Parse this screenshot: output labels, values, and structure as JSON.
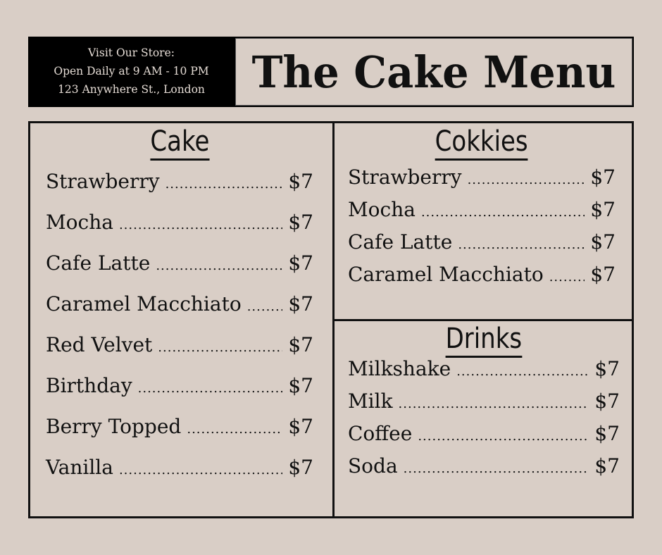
{
  "store": {
    "line1": "Visit Our Store:",
    "line2": "Open Daily at 9 AM - 10 PM",
    "line3": "123 Anywhere St., London"
  },
  "title": "The Cake Menu",
  "sections": [
    {
      "heading": "Cake",
      "items": [
        {
          "name": "Strawberry",
          "price": "$7"
        },
        {
          "name": "Mocha",
          "price": "$7"
        },
        {
          "name": "Cafe Latte",
          "price": "$7"
        },
        {
          "name": "Caramel Macchiato",
          "price": "$7"
        },
        {
          "name": "Red Velvet",
          "price": "$7"
        },
        {
          "name": "Birthday",
          "price": "$7"
        },
        {
          "name": "Berry Topped",
          "price": "$7"
        },
        {
          "name": "Vanilla",
          "price": "$7"
        }
      ]
    },
    {
      "heading": "Cokkies",
      "items": [
        {
          "name": "Strawberry",
          "price": "$7"
        },
        {
          "name": "Mocha",
          "price": "$7"
        },
        {
          "name": "Cafe Latte",
          "price": "$7"
        },
        {
          "name": "Caramel Macchiato",
          "price": "$7"
        }
      ]
    },
    {
      "heading": "Drinks",
      "items": [
        {
          "name": "Milkshake",
          "price": "$7"
        },
        {
          "name": "Milk",
          "price": "$7"
        },
        {
          "name": "Coffee",
          "price": "$7"
        },
        {
          "name": "Soda",
          "price": "$7"
        }
      ]
    }
  ]
}
